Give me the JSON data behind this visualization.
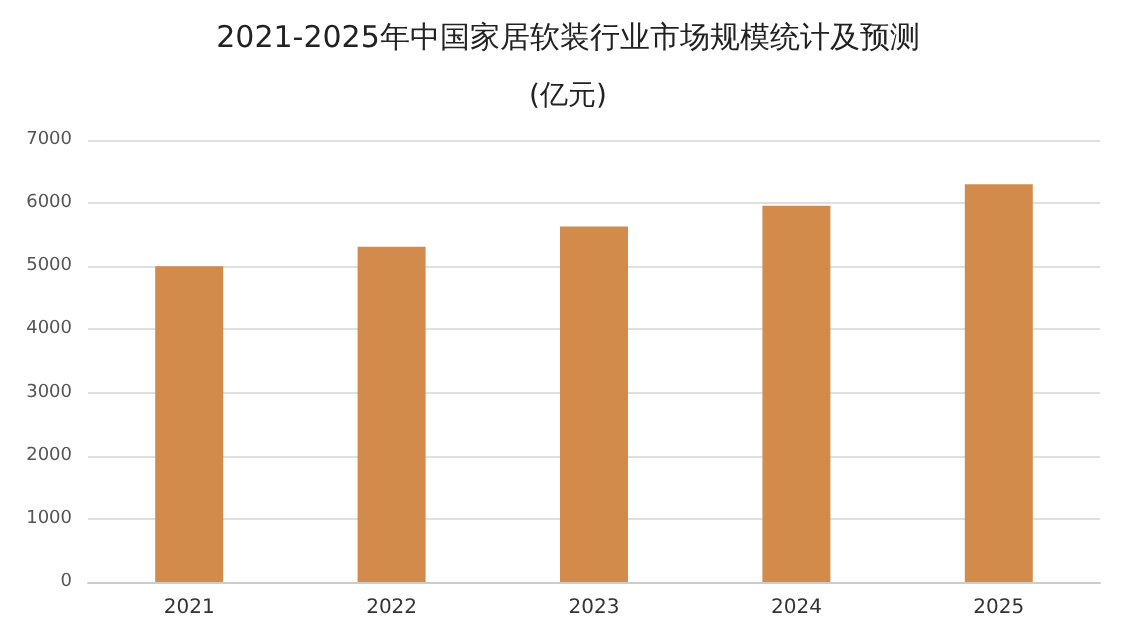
{
  "chart_data": {
    "type": "bar",
    "title": "2021-2025年中国家居软装行业市场规模统计及预测",
    "subtitle": "(亿元)",
    "categories": [
      "2021",
      "2022",
      "2023",
      "2024",
      "2025"
    ],
    "values": [
      5000,
      5310,
      5630,
      5960,
      6300
    ],
    "color": "#d38b4c",
    "ylim": [
      0,
      7000
    ],
    "yticks": [
      0,
      1000,
      2000,
      3000,
      4000,
      5000,
      6000,
      7000
    ],
    "grid": "y"
  }
}
